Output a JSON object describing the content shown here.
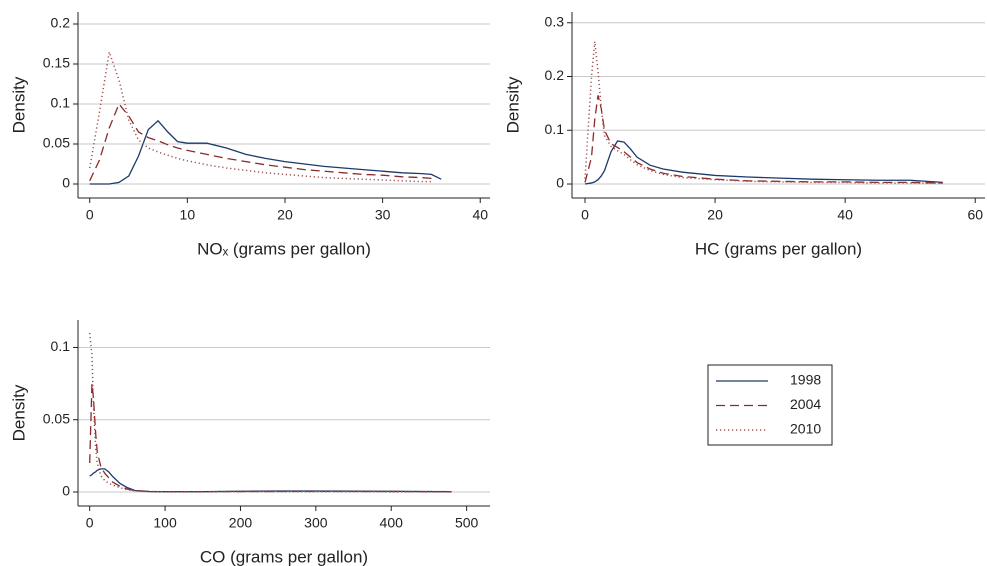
{
  "chart_data": [
    {
      "type": "line",
      "x_label": "NOₓ (grams per gallon)",
      "y_label": "Density",
      "x": [
        0,
        1,
        2,
        3,
        4,
        5,
        6,
        7,
        8,
        9,
        10,
        12,
        14,
        16,
        18,
        20,
        22,
        24,
        26,
        28,
        30,
        32,
        34,
        35,
        36
      ],
      "series": [
        {
          "name": "1998",
          "color": "#1b3a6b",
          "style": "solid",
          "values": [
            0,
            0,
            0,
            0.002,
            0.01,
            0.035,
            0.068,
            0.079,
            0.065,
            0.053,
            0.051,
            0.051,
            0.045,
            0.037,
            0.032,
            0.028,
            0.025,
            0.022,
            0.02,
            0.018,
            0.016,
            0.014,
            0.013,
            0.012,
            0.006
          ]
        },
        {
          "name": "2004",
          "color": "#8b2a2a",
          "style": "dashed",
          "values": [
            0.004,
            0.03,
            0.07,
            0.1,
            0.085,
            0.065,
            0.058,
            0.054,
            0.049,
            0.045,
            0.042,
            0.037,
            0.032,
            0.028,
            0.024,
            0.021,
            0.018,
            0.016,
            0.014,
            0.012,
            0.011,
            0.009,
            0.008,
            0.007,
            null
          ]
        },
        {
          "name": "2010",
          "color": "#9a5050",
          "style": "dotted",
          "values": [
            0.02,
            0.09,
            0.165,
            0.13,
            0.08,
            0.055,
            0.045,
            0.04,
            0.036,
            0.032,
            0.029,
            0.024,
            0.02,
            0.017,
            0.014,
            0.012,
            0.01,
            0.008,
            0.007,
            0.006,
            0.005,
            0.004,
            0.003,
            0.003,
            null
          ]
        }
      ],
      "xlim": [
        -1.2,
        41
      ],
      "ylim": [
        -0.0175,
        0.215
      ],
      "xticks": [
        0,
        10,
        20,
        30,
        40
      ],
      "yticks": [
        0,
        0.05,
        0.1,
        0.15,
        0.2
      ],
      "grid": true
    },
    {
      "type": "line",
      "x_label": "HC (grams per gallon)",
      "y_label": "Density",
      "x": [
        0,
        1,
        1.5,
        2,
        2.5,
        3,
        4,
        5,
        6,
        7,
        8,
        10,
        12,
        15,
        20,
        25,
        30,
        35,
        40,
        45,
        50,
        55
      ],
      "series": [
        {
          "color": "#1b3a6b",
          "style": "solid",
          "values": [
            0,
            0.002,
            0.004,
            0.008,
            0.015,
            0.025,
            0.06,
            0.08,
            0.078,
            0.065,
            0.05,
            0.035,
            0.028,
            0.022,
            0.016,
            0.013,
            0.011,
            0.009,
            0.008,
            0.007,
            0.007,
            0.003
          ]
        },
        {
          "color": "#8b2a2a",
          "style": "dashed",
          "values": [
            0.003,
            0.05,
            0.12,
            0.165,
            0.14,
            0.1,
            0.075,
            0.068,
            0.06,
            0.05,
            0.04,
            0.028,
            0.02,
            0.014,
            0.009,
            0.006,
            0.005,
            0.004,
            0.004,
            0.003,
            0.003,
            0.002
          ]
        },
        {
          "color": "#9a5050",
          "style": "dotted",
          "values": [
            0.01,
            0.2,
            0.265,
            0.21,
            0.14,
            0.09,
            0.07,
            0.062,
            0.055,
            0.045,
            0.036,
            0.025,
            0.018,
            0.012,
            0.008,
            0.005,
            0.004,
            0.003,
            0.003,
            0.002,
            0.002,
            0.001
          ]
        }
      ],
      "xlim": [
        -2,
        61.5
      ],
      "ylim": [
        -0.026,
        0.32
      ],
      "xticks": [
        0,
        20,
        40,
        60
      ],
      "yticks": [
        0,
        0.1,
        0.2,
        0.3
      ],
      "grid": true
    },
    {
      "type": "line",
      "x_label": "CO (grams per gallon)",
      "y_label": "Density",
      "x": [
        0,
        3,
        5,
        8,
        10,
        15,
        20,
        25,
        30,
        40,
        50,
        60,
        80,
        100,
        150,
        200,
        250,
        300,
        350,
        400,
        450,
        480
      ],
      "series": [
        {
          "color": "#1b3a6b",
          "style": "solid",
          "values": [
            0.011,
            0.012,
            0.013,
            0.014,
            0.015,
            0.016,
            0.016,
            0.014,
            0.011,
            0.006,
            0.003,
            0.001,
            0.0003,
            0.0002,
            0.0002,
            0.0005,
            0.0007,
            0.0007,
            0.0006,
            0.0005,
            0.0003,
            0.0002
          ]
        },
        {
          "color": "#8b2a2a",
          "style": "dashed",
          "values": [
            0.02,
            0.075,
            0.065,
            0.04,
            0.028,
            0.017,
            0.013,
            0.01,
            0.007,
            0.004,
            0.002,
            0.001,
            0.0003,
            0.0002,
            0.0002,
            0.0003,
            0.0004,
            0.0004,
            0.0004,
            0.0003,
            0.0002,
            0.0001
          ]
        },
        {
          "color": "#9a5050",
          "style": "dotted",
          "values": [
            0.11,
            0.095,
            0.06,
            0.03,
            0.02,
            0.011,
            0.008,
            0.006,
            0.005,
            0.003,
            0.0015,
            0.0008,
            0.0002,
            0.0001,
            0.0001,
            0.0002,
            0.0002,
            0.0002,
            0.0002,
            0.0001,
            0.0001,
            0.0001
          ]
        }
      ],
      "xlim": [
        -15.5,
        531
      ],
      "ylim": [
        -0.0097,
        0.119
      ],
      "xticks": [
        0,
        100,
        200,
        300,
        400,
        500
      ],
      "yticks": [
        0,
        0.05,
        0.1
      ],
      "grid": true
    }
  ]
}
